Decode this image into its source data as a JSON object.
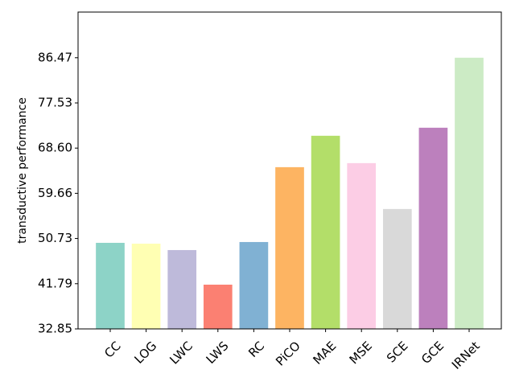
{
  "chart_data": {
    "type": "bar",
    "y_label": "transductive performance",
    "categories": [
      "CC",
      "LOG",
      "LWC",
      "LWS",
      "RC",
      "PiCO",
      "MAE",
      "MSE",
      "SCE",
      "GCE",
      "IRNet"
    ],
    "values": [
      49.87,
      49.7,
      48.44,
      41.6,
      50.03,
      64.83,
      71.04,
      65.63,
      56.56,
      72.63,
      86.47
    ],
    "colors": [
      "#8dd3c7",
      "#ffffb3",
      "#bebada",
      "#fb8072",
      "#80b1d3",
      "#fdb462",
      "#b3de69",
      "#fccde5",
      "#d9d9d9",
      "#bc80bd",
      "#ccebc5"
    ],
    "ylim": [
      32.85,
      95.5
    ],
    "yticks": [
      32.85,
      41.79,
      50.73,
      59.66,
      {
        "value": 68.6,
        "label": "68.60"
      },
      77.53,
      86.47
    ],
    "grid": false
  }
}
